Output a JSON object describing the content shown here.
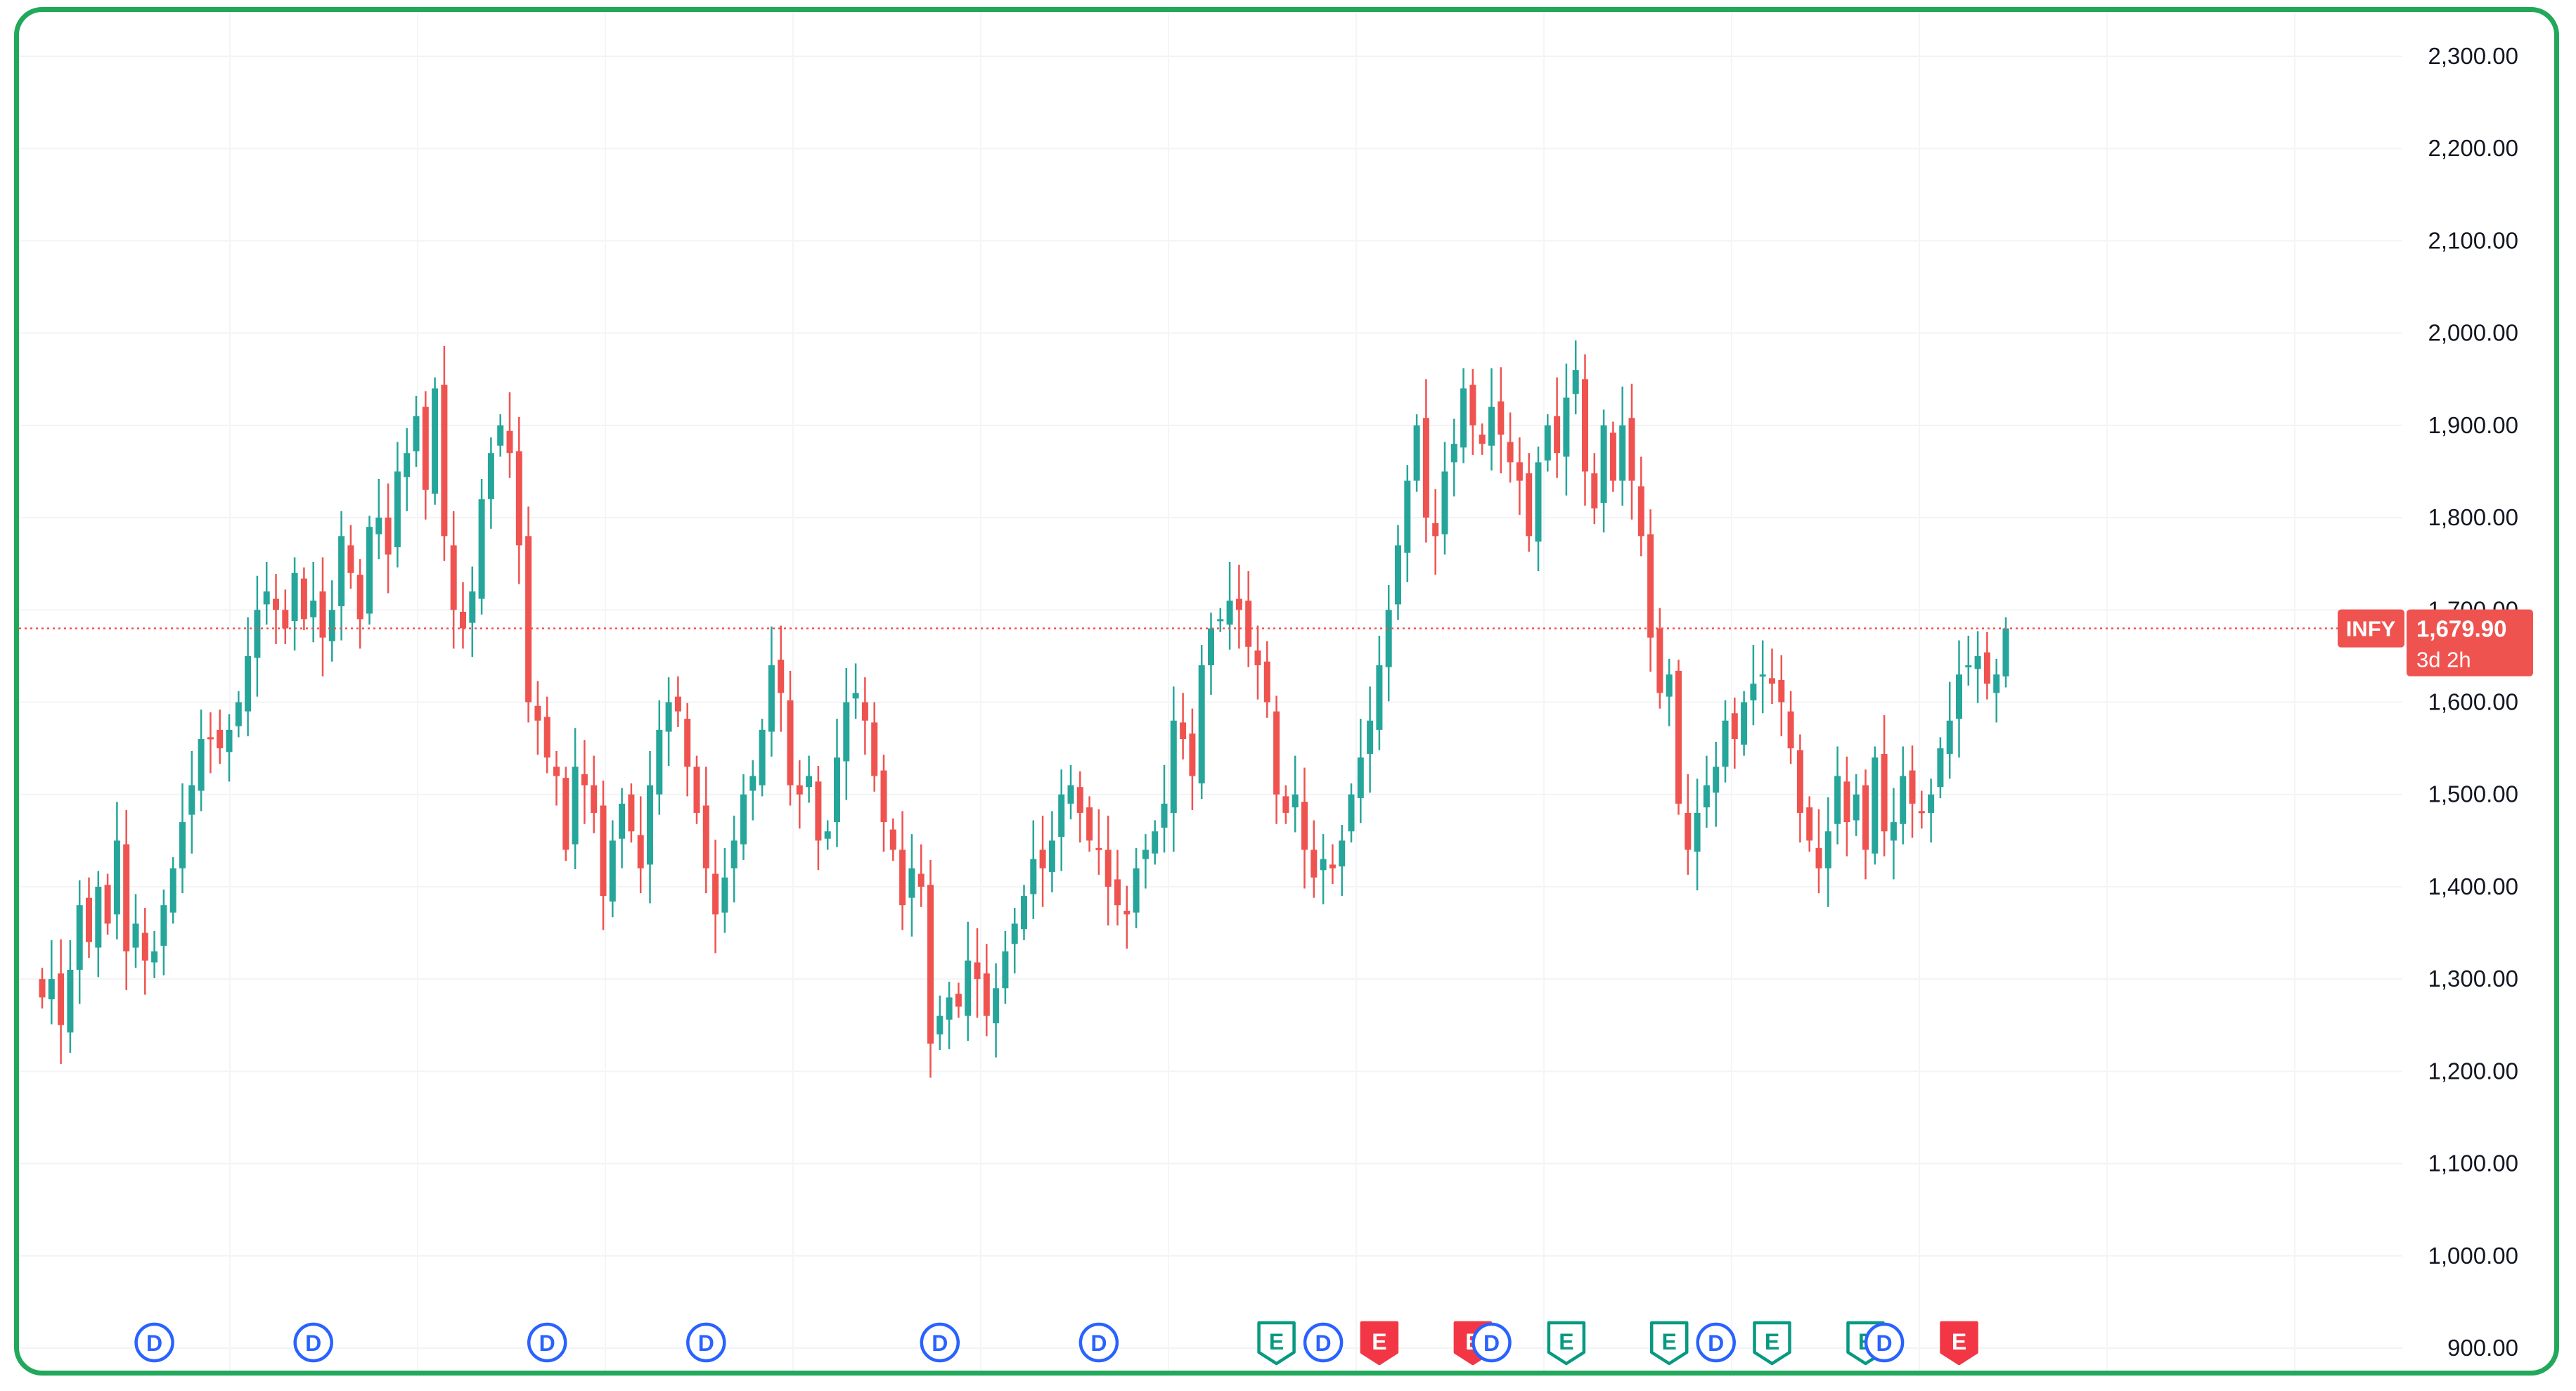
{
  "colors": {
    "up": "#26a69a",
    "down": "#ef5350",
    "dividend": "#2962ff",
    "earnings_beat": "#089981",
    "earnings_miss": "#f23645",
    "frame": "#22a85a"
  },
  "chart_data": {
    "type": "candlestick",
    "symbol": "INFY",
    "last_price": "1,679.90",
    "countdown": "3d 2h",
    "ylim": [
      900,
      2300
    ],
    "y_ticks": [
      "2,300.00",
      "2,200.00",
      "2,100.00",
      "2,000.00",
      "1,900.00",
      "1,800.00",
      "1,700.00",
      "1,600.00",
      "1,500.00",
      "1,400.00",
      "1,300.00",
      "1,200.00",
      "1,100.00",
      "1,000.00",
      "900.00"
    ],
    "y_tick_values": [
      2300,
      2200,
      2100,
      2000,
      1900,
      1800,
      1700,
      1600,
      1500,
      1400,
      1300,
      1200,
      1100,
      1000,
      900
    ],
    "closes": [
      1280,
      1300,
      1250,
      1310,
      1380,
      1340,
      1400,
      1360,
      1450,
      1330,
      1360,
      1320,
      1330,
      1380,
      1420,
      1470,
      1510,
      1560,
      1560,
      1550,
      1570,
      1600,
      1650,
      1700,
      1720,
      1700,
      1680,
      1740,
      1690,
      1710,
      1670,
      1700,
      1780,
      1740,
      1690,
      1790,
      1800,
      1760,
      1850,
      1870,
      1910,
      1830,
      1940,
      1780,
      1700,
      1680,
      1720,
      1820,
      1870,
      1900,
      1870,
      1770,
      1600,
      1580,
      1540,
      1520,
      1440,
      1530,
      1510,
      1480,
      1390,
      1450,
      1490,
      1460,
      1420,
      1510,
      1570,
      1600,
      1590,
      1530,
      1480,
      1420,
      1370,
      1410,
      1450,
      1500,
      1520,
      1570,
      1640,
      1610,
      1510,
      1500,
      1520,
      1450,
      1460,
      1540,
      1600,
      1610,
      1580,
      1520,
      1470,
      1440,
      1380,
      1420,
      1400,
      1230,
      1260,
      1280,
      1270,
      1320,
      1300,
      1260,
      1290,
      1330,
      1360,
      1390,
      1430,
      1420,
      1450,
      1500,
      1510,
      1480,
      1450,
      1440,
      1400,
      1380,
      1370,
      1420,
      1440,
      1460,
      1490,
      1580,
      1560,
      1520,
      1640,
      1680,
      1690,
      1710,
      1700,
      1660,
      1640,
      1600,
      1500,
      1480,
      1500,
      1440,
      1410,
      1430,
      1420,
      1450,
      1500,
      1540,
      1580,
      1640,
      1700,
      1770,
      1840,
      1900,
      1800,
      1780,
      1850,
      1880,
      1940,
      1900,
      1880,
      1920,
      1890,
      1860,
      1840,
      1780,
      1860,
      1900,
      1870,
      1930,
      1960,
      1850,
      1810,
      1900,
      1840,
      1900,
      1840,
      1780,
      1670,
      1610,
      1630,
      1490,
      1440,
      1480,
      1510,
      1530,
      1580,
      1560,
      1600,
      1620,
      1630,
      1620,
      1600,
      1550,
      1480,
      1450,
      1420,
      1460,
      1520,
      1470,
      1500,
      1440,
      1540,
      1460,
      1470,
      1520,
      1490,
      1480,
      1500,
      1550,
      1580,
      1630,
      1640,
      1650,
      1620,
      1630,
      1680
    ]
  },
  "events": [
    {
      "type": "dividend",
      "label": "D",
      "index": 12
    },
    {
      "type": "dividend",
      "label": "D",
      "index": 29
    },
    {
      "type": "dividend",
      "label": "D",
      "index": 54
    },
    {
      "type": "dividend",
      "label": "D",
      "index": 71
    },
    {
      "type": "dividend",
      "label": "D",
      "index": 96
    },
    {
      "type": "dividend",
      "label": "D",
      "index": 113
    },
    {
      "type": "earnings_beat",
      "label": "E",
      "index": 132
    },
    {
      "type": "dividend",
      "label": "D",
      "index": 137
    },
    {
      "type": "earnings_miss",
      "label": "E",
      "index": 143
    },
    {
      "type": "earnings_miss",
      "label": "E",
      "index": 153
    },
    {
      "type": "dividend",
      "label": "D",
      "index": 155
    },
    {
      "type": "earnings_beat",
      "label": "E",
      "index": 163
    },
    {
      "type": "earnings_beat",
      "label": "E",
      "index": 174
    },
    {
      "type": "dividend",
      "label": "D",
      "index": 179
    },
    {
      "type": "earnings_beat",
      "label": "E",
      "index": 185
    },
    {
      "type": "earnings_beat",
      "label": "E",
      "index": 195
    },
    {
      "type": "dividend",
      "label": "D",
      "index": 197
    },
    {
      "type": "earnings_miss",
      "label": "E",
      "index": 205
    }
  ]
}
